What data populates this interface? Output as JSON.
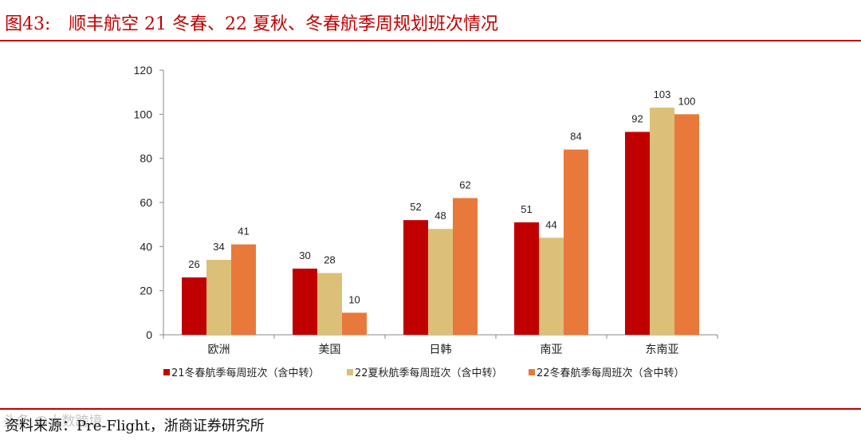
{
  "figure": {
    "number": "图43:",
    "title": "顺丰航空 21 冬春、22 夏秋、冬春航季周规划班次情况"
  },
  "source": "资料来源：Pre-Flight，浙商证券研究所",
  "watermark": "头条 @大数跨境",
  "colors": {
    "rule": "#c00000",
    "series": [
      "#c00000",
      "#dcc078",
      "#e8793a"
    ]
  },
  "chart_data": {
    "type": "bar",
    "categories": [
      "欧洲",
      "美国",
      "日韩",
      "南亚",
      "东南亚"
    ],
    "series": [
      {
        "name": "21冬春航季每周班次（含中转）",
        "values": [
          26,
          30,
          52,
          51,
          92
        ]
      },
      {
        "name": "22夏秋航季每周班次（含中转）",
        "values": [
          34,
          28,
          48,
          44,
          103
        ]
      },
      {
        "name": "22冬春航季每周班次（含中转）",
        "values": [
          41,
          10,
          62,
          84,
          100
        ]
      }
    ],
    "yticks": [
      0,
      20,
      40,
      60,
      80,
      100,
      120
    ],
    "ylim": [
      0,
      120
    ],
    "grid": false,
    "data_labels": true,
    "legend_position": "bottom"
  }
}
